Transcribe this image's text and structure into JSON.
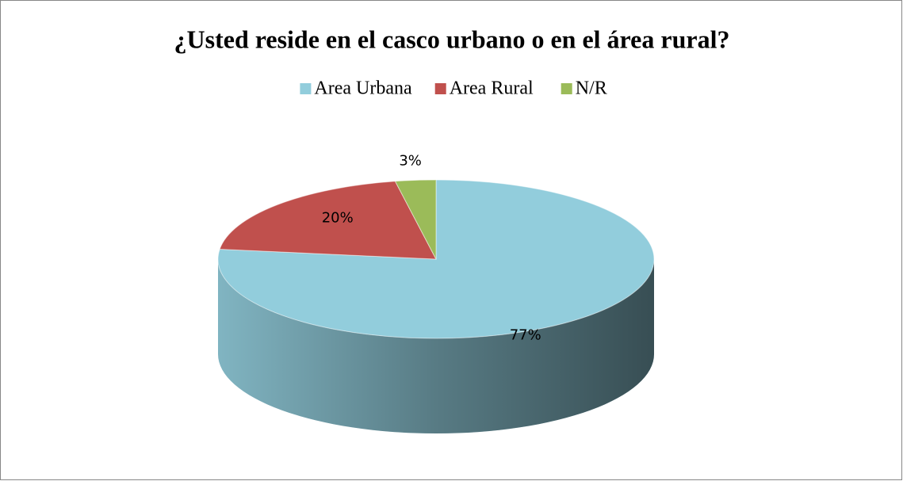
{
  "chart_data": {
    "type": "pie",
    "title": "¿Usted reside en el casco urbano o en el área rural?",
    "categories": [
      "Area Urbana",
      "Area Rural",
      "N/R"
    ],
    "values": [
      77,
      20,
      3
    ],
    "value_labels": [
      "77%",
      "20%",
      "3%"
    ],
    "colors": [
      "#92cddc",
      "#c0504d",
      "#9bbb59"
    ],
    "legend": "top"
  }
}
